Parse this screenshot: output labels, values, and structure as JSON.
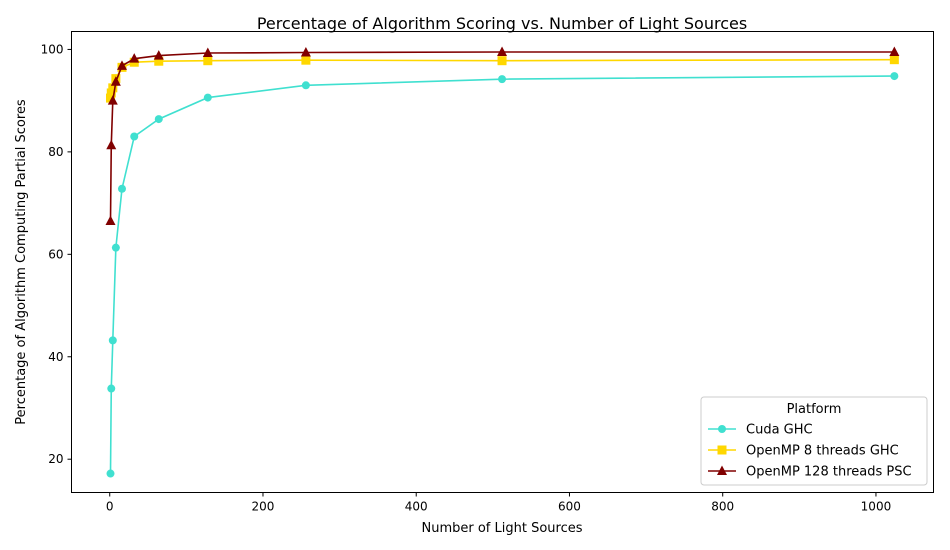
{
  "chart_data": {
    "type": "line",
    "title": "Percentage of Algorithm Scoring vs. Number of Light Sources",
    "xlabel": "Number of Light Sources",
    "ylabel": "Percentage of Algorithm Computing Partial Scores",
    "xlim": [
      -49.9,
      1075.1
    ],
    "ylim": [
      13.5,
      103.5
    ],
    "xticks": [
      0,
      200,
      400,
      600,
      800,
      1000
    ],
    "yticks": [
      20,
      40,
      60,
      80,
      100
    ],
    "grid": false,
    "legend": {
      "title": "Platform",
      "placement": "lower-right"
    },
    "x": [
      1,
      2,
      4,
      8,
      16,
      32,
      64,
      128,
      256,
      512,
      1024
    ],
    "series": [
      {
        "name": "Cuda GHC",
        "color": "#40e0d0",
        "marker": "circle",
        "values": [
          17.2,
          33.8,
          43.2,
          61.3,
          72.8,
          83.0,
          86.4,
          90.6,
          93.0,
          94.2,
          94.8
        ]
      },
      {
        "name": "OpenMP 8 threads GHC",
        "color": "#ffd700",
        "marker": "square",
        "values": [
          90.5,
          91.5,
          92.5,
          94.3,
          96.5,
          97.5,
          97.7,
          97.8,
          97.9,
          97.8,
          98.0
        ]
      },
      {
        "name": "OpenMP 128 threads PSC",
        "color": "#800000",
        "marker": "triangle",
        "values": [
          66.5,
          81.3,
          90.0,
          93.7,
          96.8,
          98.2,
          98.8,
          99.3,
          99.4,
          99.5,
          99.5
        ]
      }
    ]
  }
}
